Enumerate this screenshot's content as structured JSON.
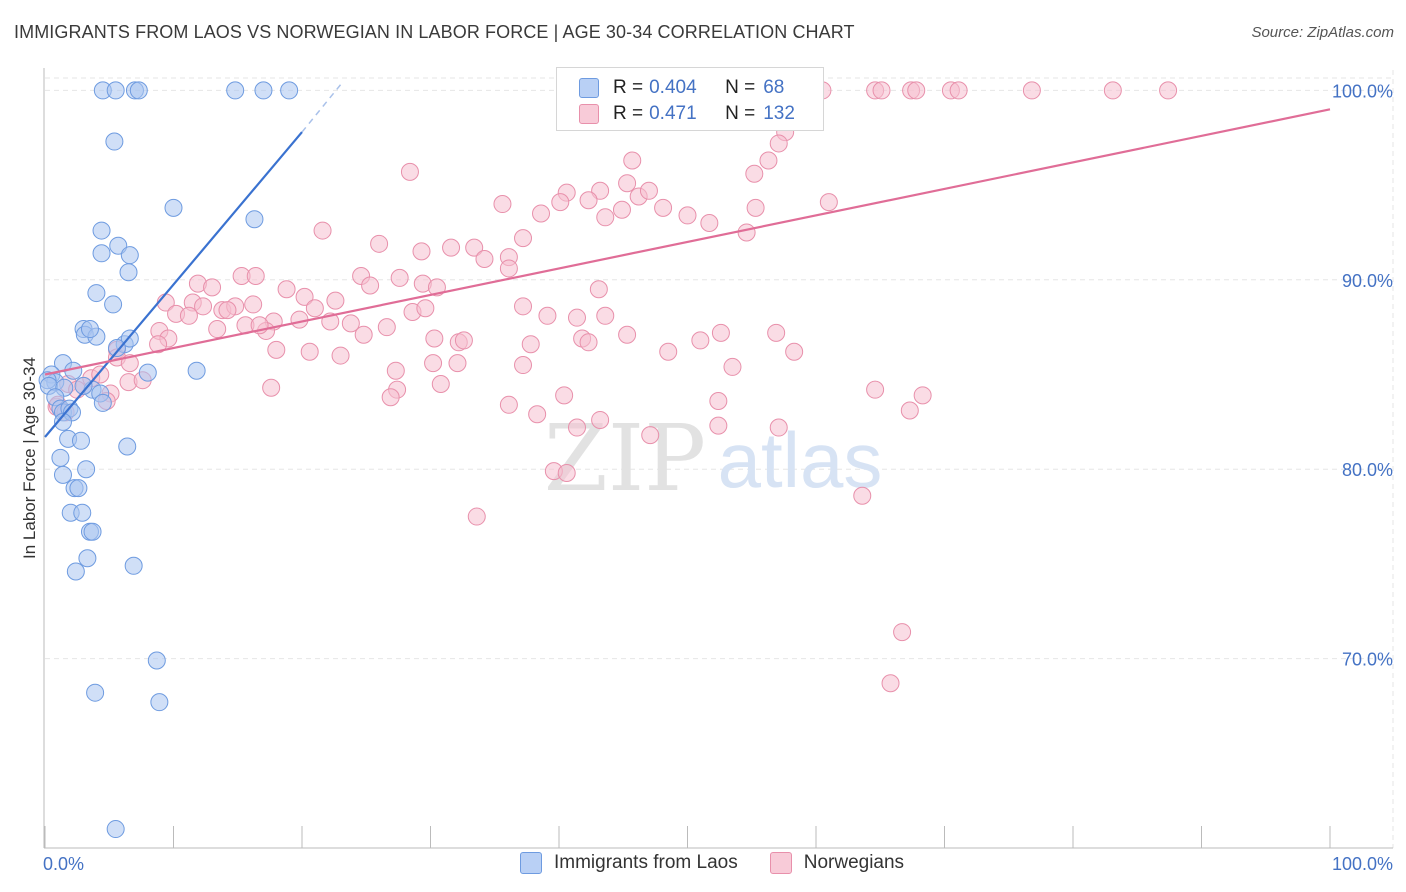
{
  "header": {
    "title": "IMMIGRANTS FROM LAOS VS NORWEGIAN IN LABOR FORCE | AGE 30-34 CORRELATION CHART",
    "source": "Source: ZipAtlas.com"
  },
  "watermark": {
    "zip": "ZIP",
    "atlas": "atlas"
  },
  "legend": {
    "r_label": "R =",
    "n_label": "N =",
    "rows": [
      {
        "name": "Immigrants from Laos",
        "r": "0.404",
        "n": "68"
      },
      {
        "name": "Norwegians",
        "r": "0.471",
        "n": "132"
      }
    ]
  },
  "colors": {
    "blue_fill": "#a9c4f0",
    "blue_stroke": "#6e9be0",
    "blue_line": "#3a72d0",
    "pink_fill": "#f6bfcf",
    "pink_stroke": "#e890ab",
    "pink_line": "#e06d97",
    "axis_text": "#4472c4",
    "grid": "#e6e6e6"
  },
  "chart_data": {
    "type": "scatter",
    "title": "IMMIGRANTS FROM LAOS VS NORWEGIAN IN LABOR FORCE | AGE 30-34 CORRELATION CHART",
    "xlabel": "",
    "ylabel": "In Labor Force | Age 30-34",
    "x_tick_labels": [
      "0.0%",
      "100.0%"
    ],
    "y_tick_labels": [
      "70.0%",
      "80.0%",
      "90.0%",
      "100.0%"
    ],
    "y_tick_values": [
      70,
      80,
      90,
      100
    ],
    "xlim": [
      0,
      100
    ],
    "ylim": [
      60,
      101.5
    ],
    "grid": true,
    "series": [
      {
        "name": "Immigrants from Laos",
        "color": "blue",
        "trend": {
          "x0": 0,
          "y0": 81.7,
          "x1": 20,
          "y1": 97.8,
          "dashed_to_x": 23,
          "dashed_to_y": 100.3
        },
        "points": [
          [
            4.5,
            100
          ],
          [
            5.5,
            100
          ],
          [
            7,
            100
          ],
          [
            7.3,
            100
          ],
          [
            14.8,
            100
          ],
          [
            17,
            100
          ],
          [
            19,
            100
          ],
          [
            5.4,
            97.3
          ],
          [
            10,
            93.8
          ],
          [
            16.3,
            93.2
          ],
          [
            4.4,
            92.6
          ],
          [
            4.4,
            91.4
          ],
          [
            5.7,
            91.8
          ],
          [
            6.6,
            91.3
          ],
          [
            6.5,
            90.4
          ],
          [
            4,
            89.3
          ],
          [
            5.3,
            88.7
          ],
          [
            3,
            87.4
          ],
          [
            3.1,
            87.1
          ],
          [
            4,
            87
          ],
          [
            6.2,
            86.6
          ],
          [
            6.6,
            86.9
          ],
          [
            3.5,
            87.4
          ],
          [
            5.6,
            86.4
          ],
          [
            1.4,
            85.6
          ],
          [
            2.2,
            85.2
          ],
          [
            3.7,
            84.2
          ],
          [
            0.5,
            85
          ],
          [
            0.8,
            84.6
          ],
          [
            0.2,
            84.7
          ],
          [
            0.3,
            84.4
          ],
          [
            1.5,
            84.3
          ],
          [
            3,
            84.4
          ],
          [
            4.3,
            84
          ],
          [
            0.8,
            83.8
          ],
          [
            1.2,
            83.2
          ],
          [
            1.4,
            83
          ],
          [
            1.9,
            83.2
          ],
          [
            2.1,
            83
          ],
          [
            8,
            85.1
          ],
          [
            11.8,
            85.2
          ],
          [
            4.5,
            83.5
          ],
          [
            1.8,
            81.6
          ],
          [
            2.8,
            81.5
          ],
          [
            1.4,
            82.5
          ],
          [
            1.2,
            80.6
          ],
          [
            1.4,
            79.7
          ],
          [
            3.2,
            80
          ],
          [
            6.4,
            81.2
          ],
          [
            2.3,
            79
          ],
          [
            2.6,
            79
          ],
          [
            2,
            77.7
          ],
          [
            2.9,
            77.7
          ],
          [
            3.5,
            76.7
          ],
          [
            3.7,
            76.7
          ],
          [
            3.3,
            75.3
          ],
          [
            2.4,
            74.6
          ],
          [
            6.9,
            74.9
          ],
          [
            8.7,
            69.9
          ],
          [
            3.9,
            68.2
          ],
          [
            8.9,
            67.7
          ],
          [
            5.5,
            61
          ]
        ]
      },
      {
        "name": "Norwegians",
        "color": "pink",
        "trend": {
          "x0": 0,
          "y0": 85.0,
          "x1": 100,
          "y1": 99.0
        },
        "points": [
          [
            54.3,
            100
          ],
          [
            54.8,
            100
          ],
          [
            60.5,
            100
          ],
          [
            64.6,
            100
          ],
          [
            65.1,
            100
          ],
          [
            67.4,
            100
          ],
          [
            67.8,
            100
          ],
          [
            70.5,
            100
          ],
          [
            71.1,
            100
          ],
          [
            76.8,
            100
          ],
          [
            83.1,
            100
          ],
          [
            87.4,
            100
          ],
          [
            43.8,
            98.7
          ],
          [
            57.6,
            97.8
          ],
          [
            57.1,
            97.2
          ],
          [
            28.4,
            95.7
          ],
          [
            45.7,
            96.3
          ],
          [
            56.3,
            96.3
          ],
          [
            55.2,
            95.6
          ],
          [
            45.3,
            95.1
          ],
          [
            43.2,
            94.7
          ],
          [
            40.6,
            94.6
          ],
          [
            35.6,
            94
          ],
          [
            40.1,
            94.1
          ],
          [
            42.3,
            94.2
          ],
          [
            46.2,
            94.4
          ],
          [
            48.1,
            93.8
          ],
          [
            47,
            94.7
          ],
          [
            44.9,
            93.7
          ],
          [
            43.6,
            93.3
          ],
          [
            50,
            93.4
          ],
          [
            55.3,
            93.8
          ],
          [
            61,
            94.1
          ],
          [
            38.6,
            93.5
          ],
          [
            21.6,
            92.6
          ],
          [
            26,
            91.9
          ],
          [
            31.6,
            91.7
          ],
          [
            29.3,
            91.5
          ],
          [
            33.4,
            91.7
          ],
          [
            34.2,
            91.1
          ],
          [
            36.1,
            91.2
          ],
          [
            37.2,
            92.2
          ],
          [
            51.7,
            93
          ],
          [
            54.6,
            92.5
          ],
          [
            15.3,
            90.2
          ],
          [
            16.4,
            90.2
          ],
          [
            11.9,
            89.8
          ],
          [
            13,
            89.6
          ],
          [
            18.8,
            89.5
          ],
          [
            20.2,
            89.1
          ],
          [
            24.6,
            90.2
          ],
          [
            25.3,
            89.7
          ],
          [
            27.6,
            90.1
          ],
          [
            29.4,
            89.8
          ],
          [
            30.5,
            89.6
          ],
          [
            36.1,
            90.6
          ],
          [
            43.1,
            89.5
          ],
          [
            9.4,
            88.8
          ],
          [
            11.5,
            88.8
          ],
          [
            12.3,
            88.6
          ],
          [
            13.8,
            88.4
          ],
          [
            14.8,
            88.6
          ],
          [
            16.2,
            88.7
          ],
          [
            21,
            88.5
          ],
          [
            22.6,
            88.9
          ],
          [
            28.6,
            88.3
          ],
          [
            29.6,
            88.5
          ],
          [
            37.2,
            88.6
          ],
          [
            39.1,
            88.1
          ],
          [
            41.4,
            88
          ],
          [
            43.6,
            88.1
          ],
          [
            10.2,
            88.2
          ],
          [
            11.2,
            88.1
          ],
          [
            13.4,
            87.4
          ],
          [
            15.6,
            87.6
          ],
          [
            17.8,
            87.8
          ],
          [
            19.8,
            87.9
          ],
          [
            22.2,
            87.8
          ],
          [
            23.8,
            87.7
          ],
          [
            24.8,
            87.1
          ],
          [
            26.6,
            87.5
          ],
          [
            14.2,
            88.4
          ],
          [
            17.2,
            87.3
          ],
          [
            16.7,
            87.6
          ],
          [
            8.9,
            87.3
          ],
          [
            9.6,
            86.9
          ],
          [
            8.8,
            86.6
          ],
          [
            30.3,
            86.9
          ],
          [
            32.2,
            86.7
          ],
          [
            32.6,
            86.8
          ],
          [
            37.8,
            86.6
          ],
          [
            41.8,
            86.9
          ],
          [
            42.3,
            86.7
          ],
          [
            45.3,
            87.1
          ],
          [
            48.5,
            86.2
          ],
          [
            51,
            86.8
          ],
          [
            52.6,
            87.2
          ],
          [
            56.9,
            87.2
          ],
          [
            58.3,
            86.2
          ],
          [
            53.5,
            85.4
          ],
          [
            5.6,
            86.3
          ],
          [
            5.6,
            85.9
          ],
          [
            6.6,
            85.6
          ],
          [
            18,
            86.3
          ],
          [
            20.6,
            86.2
          ],
          [
            23,
            86
          ],
          [
            30.2,
            85.6
          ],
          [
            32.1,
            85.6
          ],
          [
            37.2,
            85.5
          ],
          [
            27.3,
            85.2
          ],
          [
            3,
            84.4
          ],
          [
            3.6,
            84.8
          ],
          [
            4.3,
            85
          ],
          [
            5.1,
            84
          ],
          [
            6.5,
            84.6
          ],
          [
            7.6,
            84.7
          ],
          [
            1.8,
            84.5
          ],
          [
            2.5,
            84.2
          ],
          [
            0.9,
            83.3
          ],
          [
            1,
            83.4
          ],
          [
            1.6,
            83
          ],
          [
            4.8,
            83.6
          ],
          [
            17.6,
            84.3
          ],
          [
            27.4,
            84.2
          ],
          [
            30.8,
            84.5
          ],
          [
            26.9,
            83.8
          ],
          [
            36.1,
            83.4
          ],
          [
            40.4,
            83.9
          ],
          [
            52.4,
            83.6
          ],
          [
            64.6,
            84.2
          ],
          [
            68.3,
            83.9
          ],
          [
            67.3,
            83.1
          ],
          [
            52.4,
            82.3
          ],
          [
            43.2,
            82.6
          ],
          [
            41.4,
            82.2
          ],
          [
            47.1,
            81.8
          ],
          [
            57.1,
            82.2
          ],
          [
            38.3,
            82.9
          ],
          [
            39.6,
            79.9
          ],
          [
            40.6,
            79.8
          ],
          [
            33.6,
            77.5
          ],
          [
            63.6,
            78.6
          ],
          [
            66.7,
            71.4
          ],
          [
            65.8,
            68.7
          ]
        ]
      }
    ]
  }
}
